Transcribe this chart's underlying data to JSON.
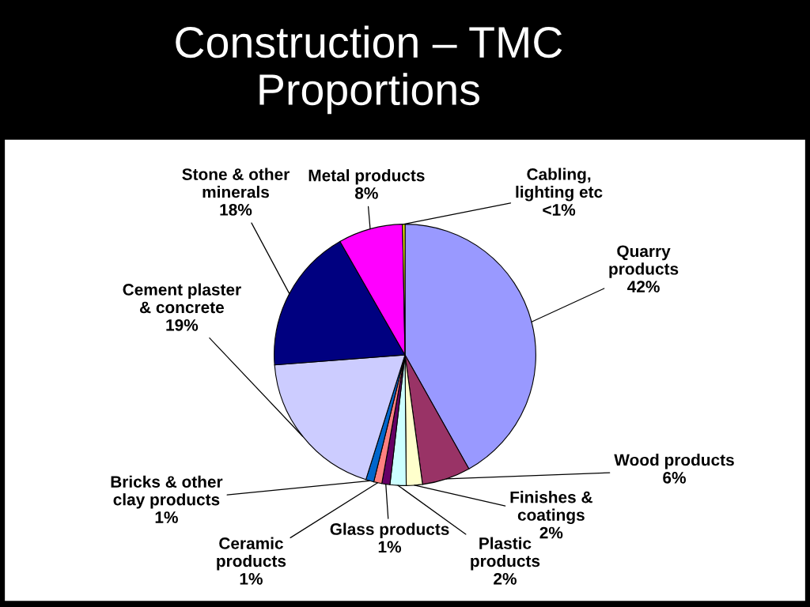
{
  "chart_data": {
    "type": "pie",
    "title": "Construction – TMC\nProportions",
    "categories": [
      "Quarry\nproducts",
      "Wood products",
      "Finishes &\ncoatings",
      "Plastic\nproducts",
      "Glass products",
      "Ceramic\nproducts",
      "Bricks & other\nclay products",
      "Cement plaster\n& concrete",
      "Stone & other\nminerals",
      "Metal products",
      "Cabling,\nlighting etc"
    ],
    "values": [
      42,
      6,
      2,
      2,
      1,
      1,
      1,
      19,
      18,
      8,
      0.3
    ],
    "value_labels": [
      "42%",
      "6%",
      "2%",
      "2%",
      "1%",
      "1%",
      "1%",
      "19%",
      "18%",
      "8%",
      "<1%"
    ],
    "colors": [
      "#9999ff",
      "#993366",
      "#ffffcc",
      "#ccffff",
      "#660066",
      "#ff8080",
      "#0066cc",
      "#ccccff",
      "#000080",
      "#ff00ff",
      "#ffff00"
    ],
    "legend": false
  }
}
